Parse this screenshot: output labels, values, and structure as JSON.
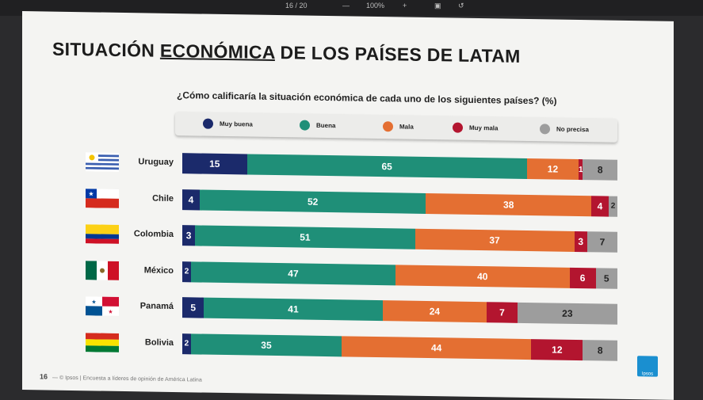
{
  "viewer": {
    "page": "16 / 20",
    "zoom": "100%",
    "minus": "—",
    "plus": "+"
  },
  "slide": {
    "title_part1": "SITUACIÓN ",
    "title_part2": "ECONÓMICA",
    "title_part3": " DE LOS PAÍSES DE LATAM",
    "footer_page": "16",
    "footer_text": "— © Ipsos | Encuesta a líderes de opinión de América Latina",
    "logo_text": "Ipsos"
  },
  "chart_data": {
    "type": "bar",
    "orientation": "horizontal",
    "stacked": "100%",
    "title": "¿Cómo calificaría la situación económica de cada uno de los siguientes países? (%)",
    "legend_position": "top",
    "categories": [
      "Uruguay",
      "Chile",
      "Colombia",
      "México",
      "Panamá",
      "Bolivia"
    ],
    "series": [
      {
        "name": "Muy buena",
        "color": "#1b2a6b",
        "values": [
          15,
          4,
          3,
          2,
          5,
          2
        ]
      },
      {
        "name": "Buena",
        "color": "#1f8f78",
        "values": [
          65,
          52,
          51,
          47,
          41,
          35
        ]
      },
      {
        "name": "Mala",
        "color": "#e46f32",
        "values": [
          12,
          38,
          37,
          40,
          24,
          44
        ]
      },
      {
        "name": "Muy mala",
        "color": "#b3152f",
        "values": [
          1,
          4,
          3,
          6,
          7,
          12
        ]
      },
      {
        "name": "No precisa",
        "color": "#9d9d9d",
        "values": [
          8,
          2,
          7,
          5,
          23,
          8
        ]
      }
    ]
  }
}
